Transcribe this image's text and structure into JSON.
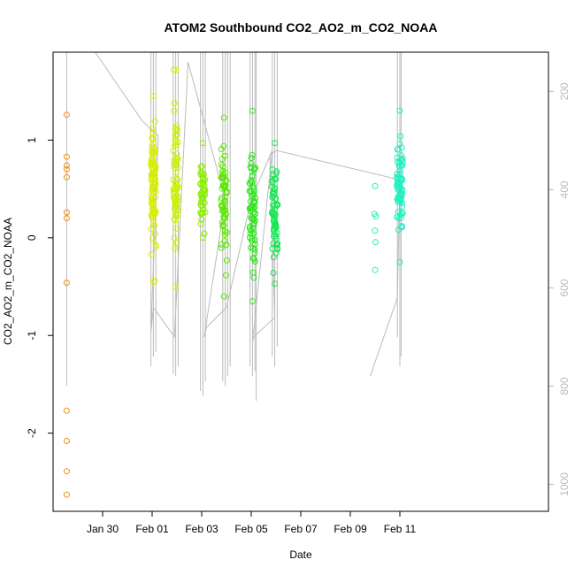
{
  "chart_data": {
    "type": "scatter",
    "title": "ATOM2 Southbound CO2_AO2_m_CO2_NOAA",
    "xlabel": "Date",
    "ylabel": "CO2_AO2_m_CO2_NOAA",
    "xlim": [
      0,
      20
    ],
    "ylim": [
      -2.8,
      1.9
    ],
    "x_ticks": [
      {
        "label": "Jan 30",
        "value": 2
      },
      {
        "label": "Feb 01",
        "value": 4
      },
      {
        "label": "Feb 03",
        "value": 6
      },
      {
        "label": "Feb 05",
        "value": 8
      },
      {
        "label": "Feb 07",
        "value": 10
      },
      {
        "label": "Feb 09",
        "value": 12
      },
      {
        "label": "Feb 11",
        "value": 14
      }
    ],
    "y_ticks": [
      -2,
      -1,
      0,
      1
    ],
    "y2_ticks": [
      200,
      400,
      600,
      800,
      1000
    ],
    "y2lim": [
      120,
      1055
    ],
    "grid": false,
    "groups": [
      {
        "center": 0.55,
        "color": "#f28c1a",
        "ys": [
          1.26,
          0.83,
          0.74,
          0.7,
          0.62,
          0.26,
          0.2,
          -0.46,
          -1.77,
          -2.08,
          -2.39,
          -2.63
        ]
      },
      {
        "center": 4.05,
        "color": "#d8ee00",
        "spread": 0.1,
        "n": 90,
        "ymin": -0.45,
        "ymax": 1.45
      },
      {
        "center": 4.95,
        "color": "#c8f200",
        "spread": 0.1,
        "n": 70,
        "ymin": -0.5,
        "ymax": 1.72
      },
      {
        "center": 6.05,
        "color": "#8cee00",
        "spread": 0.1,
        "n": 50,
        "ymin": 0.0,
        "ymax": 0.97
      },
      {
        "center": 6.9,
        "color": "#5ce800",
        "spread": 0.12,
        "n": 60,
        "ymin": -0.6,
        "ymax": 1.23
      },
      {
        "center": 8.05,
        "color": "#2ee81a",
        "spread": 0.12,
        "n": 70,
        "ymin": -0.65,
        "ymax": 1.3
      },
      {
        "center": 8.95,
        "color": "#10e850",
        "spread": 0.12,
        "n": 60,
        "ymin": -0.47,
        "ymax": 0.97
      },
      {
        "center": 13.0,
        "color": "#28eeb0",
        "spread": 0.04,
        "n": 4,
        "ymin": -0.33,
        "ymax": 0.53
      },
      {
        "center": 14.0,
        "color": "#20f0c0",
        "spread": 0.12,
        "n": 80,
        "ymin": -0.25,
        "ymax": 1.3
      }
    ],
    "pressure_line": {
      "color": "#bbbbbb",
      "points": [
        [
          1.7,
          120
        ],
        [
          3.6,
          260
        ],
        [
          4.25,
          290
        ],
        [
          3.95,
          690
        ],
        [
          4.05,
          640
        ],
        [
          4.9,
          700
        ],
        [
          5.45,
          140
        ],
        [
          6.95,
          420
        ],
        [
          6.1,
          700
        ],
        [
          6.2,
          680
        ],
        [
          7.0,
          640
        ],
        [
          8.0,
          420
        ],
        [
          8.85,
          320
        ],
        [
          8.05,
          710
        ],
        [
          8.1,
          700
        ],
        [
          8.95,
          660
        ],
        [
          8.75,
          330
        ],
        [
          9.0,
          320
        ],
        [
          14.0,
          380
        ],
        [
          13.9,
          620
        ],
        [
          12.8,
          780
        ]
      ],
      "spikes": [
        {
          "x": 0.55,
          "top": 60,
          "bottom": 800
        },
        {
          "x": 3.95,
          "top": 60,
          "bottom": 760
        },
        {
          "x": 4.05,
          "top": 60,
          "bottom": 740
        },
        {
          "x": 4.15,
          "top": 60,
          "bottom": 730
        },
        {
          "x": 4.85,
          "top": 60,
          "bottom": 775
        },
        {
          "x": 4.95,
          "top": 60,
          "bottom": 780
        },
        {
          "x": 5.05,
          "top": 60,
          "bottom": 760
        },
        {
          "x": 5.95,
          "top": 60,
          "bottom": 810
        },
        {
          "x": 6.05,
          "top": 60,
          "bottom": 820
        },
        {
          "x": 6.15,
          "top": 60,
          "bottom": 790
        },
        {
          "x": 6.85,
          "top": 60,
          "bottom": 790
        },
        {
          "x": 6.95,
          "top": 60,
          "bottom": 800
        },
        {
          "x": 7.05,
          "top": 60,
          "bottom": 780
        },
        {
          "x": 7.15,
          "top": 60,
          "bottom": 760
        },
        {
          "x": 7.95,
          "top": 60,
          "bottom": 760
        },
        {
          "x": 8.05,
          "top": 60,
          "bottom": 780
        },
        {
          "x": 8.15,
          "top": 60,
          "bottom": 770
        },
        {
          "x": 8.2,
          "top": 60,
          "bottom": 830
        },
        {
          "x": 8.85,
          "top": 60,
          "bottom": 740
        },
        {
          "x": 8.95,
          "top": 60,
          "bottom": 760
        },
        {
          "x": 9.05,
          "top": 60,
          "bottom": 720
        },
        {
          "x": 13.9,
          "top": 60,
          "bottom": 700
        },
        {
          "x": 14.0,
          "top": 60,
          "bottom": 760
        },
        {
          "x": 14.05,
          "top": 60,
          "bottom": 740
        }
      ]
    }
  }
}
